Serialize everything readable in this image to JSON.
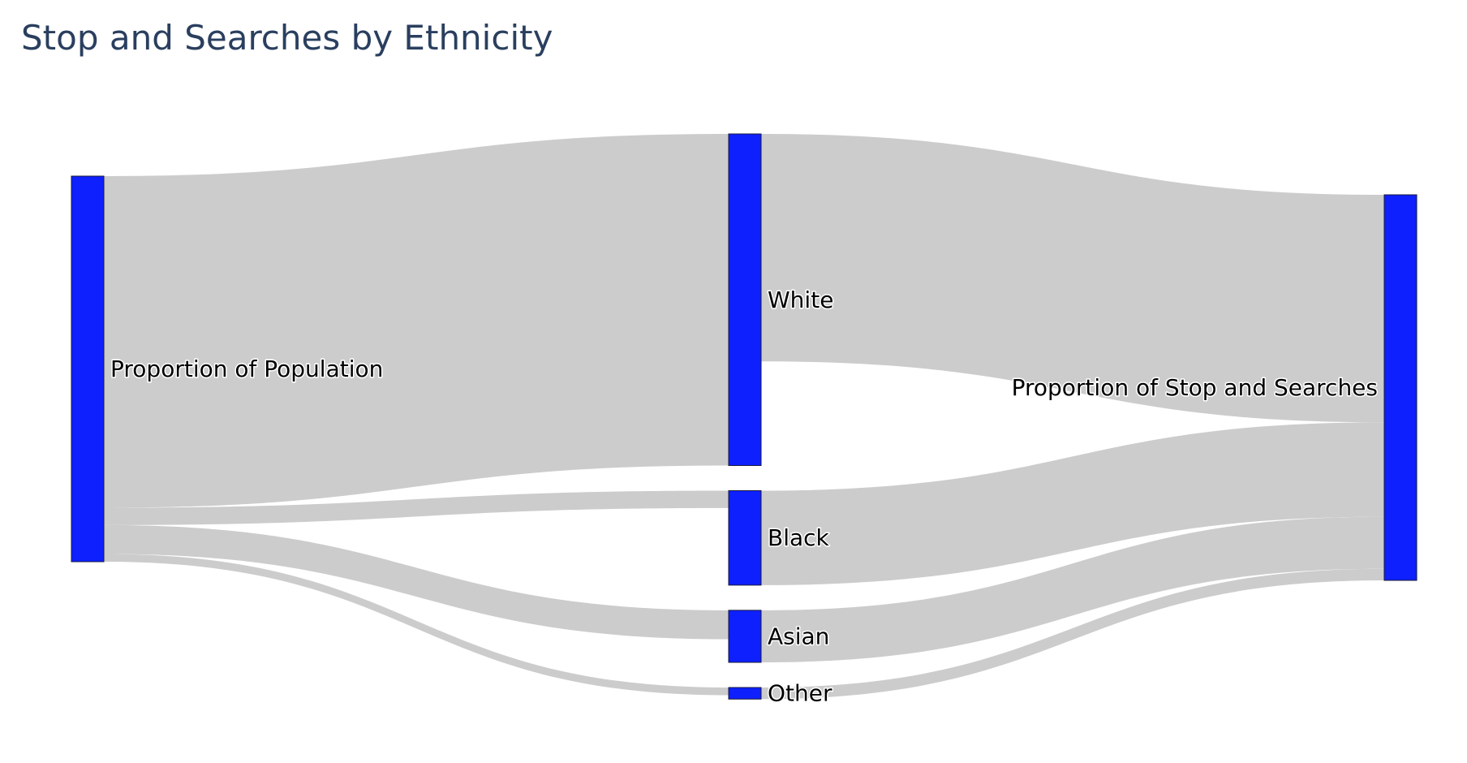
{
  "chart_data": {
    "type": "sankey",
    "title": "Stop and Searches by Ethnicity",
    "nodes": [
      {
        "id": "pop",
        "label": "Proportion of Population",
        "column": 0
      },
      {
        "id": "white",
        "label": "White",
        "column": 1
      },
      {
        "id": "black",
        "label": "Black",
        "column": 1
      },
      {
        "id": "asian",
        "label": "Asian",
        "column": 1
      },
      {
        "id": "other",
        "label": "Other",
        "column": 1
      },
      {
        "id": "stop",
        "label": "Proportion of Stop and Searches",
        "column": 2
      }
    ],
    "links": [
      {
        "source": "pop",
        "target": "white",
        "value": 86
      },
      {
        "source": "pop",
        "target": "black",
        "value": 4.5
      },
      {
        "source": "pop",
        "target": "asian",
        "value": 7.5
      },
      {
        "source": "pop",
        "target": "other",
        "value": 2
      },
      {
        "source": "white",
        "target": "stop",
        "value": 59
      },
      {
        "source": "black",
        "target": "stop",
        "value": 24.5
      },
      {
        "source": "asian",
        "target": "stop",
        "value": 13.5
      },
      {
        "source": "other",
        "target": "stop",
        "value": 3
      }
    ]
  },
  "colors": {
    "node_fill": "#0d20fd",
    "node_stroke": "#1a1a3a",
    "link_fill": "#cccccc",
    "title": "#2a3f5f"
  }
}
